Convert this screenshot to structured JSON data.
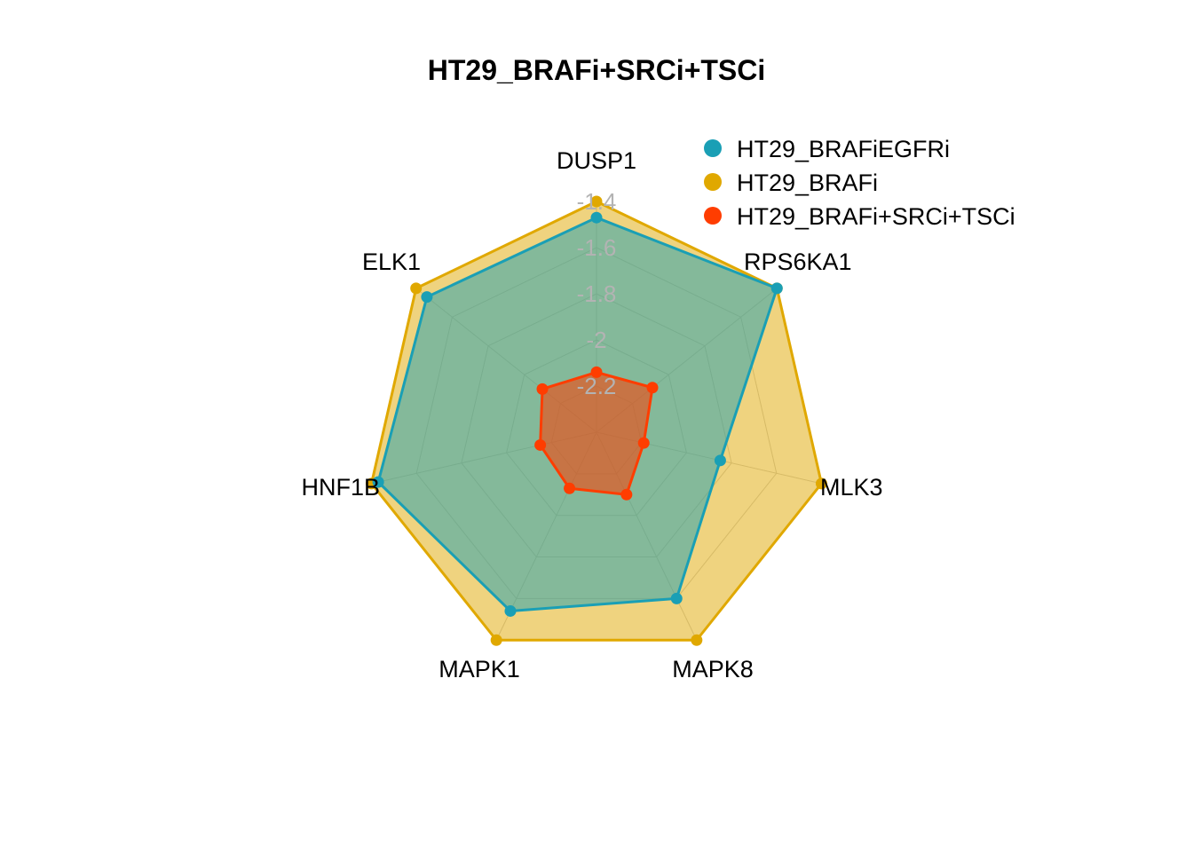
{
  "chart_data": {
    "type": "radar",
    "title": "HT29_BRAFi+SRCi+TSCi",
    "axes": [
      "DUSP1",
      "RPS6KA1",
      "MLK3",
      "MAPK8",
      "MAPK1",
      "HNF1B",
      "ELK1"
    ],
    "rlim": [
      -2.4,
      -1.4
    ],
    "ticks": [
      -1.4,
      -1.6,
      -1.8,
      -2,
      -2.2
    ],
    "tick_labels": [
      "-1.4",
      "-1.6",
      "-1.8",
      "-2",
      "-2.2"
    ],
    "grid": true,
    "legend": {
      "position": "top-right"
    },
    "series": [
      {
        "name": "HT29_BRAFiEGFRi",
        "color": "#1a9fb5",
        "values": [
          -1.47,
          -1.4,
          -1.85,
          -1.6,
          -1.54,
          -1.43,
          -1.46
        ]
      },
      {
        "name": "HT29_BRAFi",
        "color": "#e0a800",
        "values": [
          -1.4,
          -1.4,
          -1.4,
          -1.4,
          -1.4,
          -1.4,
          -1.4
        ]
      },
      {
        "name": "HT29_BRAFi+SRCi+TSCi",
        "color": "#ff3d00",
        "values": [
          -2.14,
          -2.09,
          -2.19,
          -2.1,
          -2.13,
          -2.15,
          -2.1
        ]
      }
    ],
    "draw_order": [
      1,
      0,
      2
    ]
  }
}
